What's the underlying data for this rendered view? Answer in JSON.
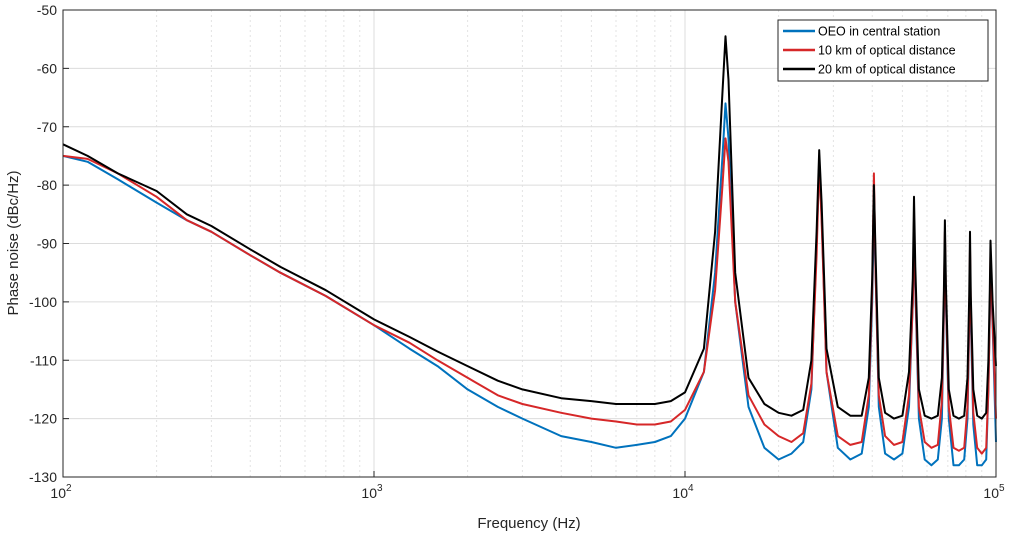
{
  "chart_data": {
    "type": "line",
    "title": "",
    "xlabel": "Frequency (Hz)",
    "ylabel": "Phase noise (dBc/Hz)",
    "xscale": "log",
    "xlim": [
      100,
      100000
    ],
    "ylim": [
      -130,
      -50
    ],
    "grid": true,
    "legend_position": "top-right",
    "x_ticks": [
      {
        "value": 100,
        "base": "10",
        "exp": "2"
      },
      {
        "value": 1000,
        "base": "10",
        "exp": "3"
      },
      {
        "value": 10000,
        "base": "10",
        "exp": "4"
      },
      {
        "value": 100000,
        "base": "10",
        "exp": "5"
      }
    ],
    "y_ticks": [
      -50,
      -60,
      -70,
      -80,
      -90,
      -100,
      -110,
      -120,
      -130
    ],
    "series": [
      {
        "name": "OEO in central station",
        "color": "#0072BD",
        "x": [
          100,
          120,
          150,
          200,
          250,
          300,
          400,
          500,
          700,
          1000,
          1300,
          1600,
          2000,
          2500,
          3000,
          4000,
          5000,
          6000,
          7000,
          8000,
          9000,
          10000,
          11500,
          12500,
          13200,
          13500,
          13800,
          14500,
          16000,
          18000,
          20000,
          22000,
          24000,
          25500,
          26500,
          27000,
          27500,
          28500,
          31000,
          34000,
          37000,
          39000,
          40000,
          40500,
          41000,
          42000,
          44000,
          47000,
          50000,
          52500,
          54000,
          54500,
          55000,
          56500,
          59000,
          62000,
          65000,
          67000,
          68000,
          68500,
          69000,
          70500,
          73000,
          76000,
          79000,
          81000,
          82000,
          82500,
          83000,
          84500,
          87000,
          90000,
          93000,
          94500,
          95500,
          96000,
          97500,
          100000
        ],
        "y": [
          -75,
          -76,
          -79,
          -83,
          -86,
          -88,
          -92,
          -95,
          -99,
          -104,
          -108,
          -111,
          -115,
          -118,
          -120,
          -123,
          -124,
          -125,
          -124.5,
          -124,
          -123,
          -120,
          -112,
          -95,
          -75,
          -66,
          -72,
          -100,
          -118,
          -125,
          -127,
          -126,
          -124,
          -115,
          -90,
          -76,
          -85,
          -112,
          -125,
          -127,
          -126,
          -118,
          -100,
          -84,
          -95,
          -118,
          -126,
          -127,
          -126,
          -118,
          -100,
          -89,
          -98,
          -120,
          -127,
          -128,
          -127,
          -120,
          -102,
          -93,
          -100,
          -120,
          -128,
          -128,
          -127,
          -120,
          -104,
          -95,
          -103,
          -121,
          -128,
          -128,
          -127,
          -115,
          -102,
          -94,
          -104,
          -124
        ]
      },
      {
        "name": "10 km of optical distance",
        "color": "#D62728",
        "x": [
          100,
          120,
          150,
          200,
          250,
          300,
          400,
          500,
          700,
          1000,
          1300,
          1600,
          2000,
          2500,
          3000,
          4000,
          5000,
          6000,
          7000,
          8000,
          9000,
          10000,
          11500,
          12500,
          13200,
          13500,
          13800,
          14500,
          16000,
          18000,
          20000,
          22000,
          24000,
          25500,
          26500,
          27000,
          27500,
          28500,
          31000,
          34000,
          37000,
          39000,
          40000,
          40500,
          41000,
          42000,
          44000,
          47000,
          50000,
          52500,
          54000,
          54500,
          55000,
          56500,
          59000,
          62000,
          65000,
          67000,
          68000,
          68500,
          69000,
          70500,
          73000,
          76000,
          79000,
          81000,
          82000,
          82500,
          83000,
          84500,
          87000,
          90000,
          93000,
          94500,
          95500,
          96000,
          97500,
          100000
        ],
        "y": [
          -75,
          -75.5,
          -78,
          -82,
          -86,
          -88,
          -92,
          -95,
          -99,
          -104,
          -107,
          -110,
          -113,
          -116,
          -117.5,
          -119,
          -120,
          -120.5,
          -121,
          -121,
          -120.5,
          -118.5,
          -112,
          -98,
          -80,
          -72,
          -76,
          -100,
          -116,
          -121,
          -123,
          -124,
          -122.5,
          -114,
          -92,
          -76,
          -86,
          -112,
          -123,
          -124.5,
          -124,
          -116,
          -98,
          -78,
          -95,
          -116,
          -123,
          -124.5,
          -124,
          -116,
          -100,
          -86,
          -97,
          -118,
          -124,
          -125,
          -124.5,
          -117,
          -101,
          -88,
          -99,
          -118,
          -125,
          -125.5,
          -125,
          -118,
          -103,
          -91,
          -101,
          -119,
          -125,
          -126,
          -125,
          -115,
          -102,
          -92,
          -103,
          -120
        ]
      },
      {
        "name": "20 km of optical distance",
        "color": "#000000",
        "x": [
          100,
          120,
          150,
          200,
          250,
          300,
          400,
          500,
          700,
          1000,
          1300,
          1600,
          2000,
          2500,
          3000,
          4000,
          5000,
          6000,
          7000,
          8000,
          9000,
          10000,
          11500,
          12500,
          13200,
          13500,
          13800,
          14500,
          16000,
          18000,
          20000,
          22000,
          24000,
          25500,
          26500,
          27000,
          27500,
          28500,
          31000,
          34000,
          37000,
          39000,
          40000,
          40500,
          41000,
          42000,
          44000,
          47000,
          50000,
          52500,
          54000,
          54500,
          55000,
          56500,
          59000,
          62000,
          65000,
          67000,
          68000,
          68500,
          69000,
          70500,
          73000,
          76000,
          79000,
          81000,
          82000,
          82500,
          83000,
          84500,
          87000,
          90000,
          93000,
          94500,
          95500,
          96000,
          97500,
          100000
        ],
        "y": [
          -73,
          -75,
          -78,
          -81,
          -85,
          -87,
          -91,
          -94,
          -98,
          -103,
          -106,
          -108.5,
          -111,
          -113.5,
          -115,
          -116.5,
          -117,
          -117.5,
          -117.5,
          -117.5,
          -117,
          -115.5,
          -108,
          -88,
          -64,
          -54.5,
          -62,
          -95,
          -113,
          -117.5,
          -119,
          -119.5,
          -118.5,
          -110,
          -88,
          -74,
          -83,
          -108,
          -118,
          -119.5,
          -119.5,
          -113,
          -96,
          -80,
          -92,
          -113,
          -119,
          -120,
          -119.5,
          -112,
          -96,
          -82,
          -94,
          -115,
          -119.5,
          -120,
          -119.5,
          -113,
          -98,
          -86,
          -97,
          -115,
          -119.5,
          -120,
          -119.5,
          -113,
          -99,
          -88,
          -99,
          -115,
          -119.5,
          -120,
          -119,
          -110,
          -98,
          -89.5,
          -100,
          -111
        ]
      }
    ]
  }
}
